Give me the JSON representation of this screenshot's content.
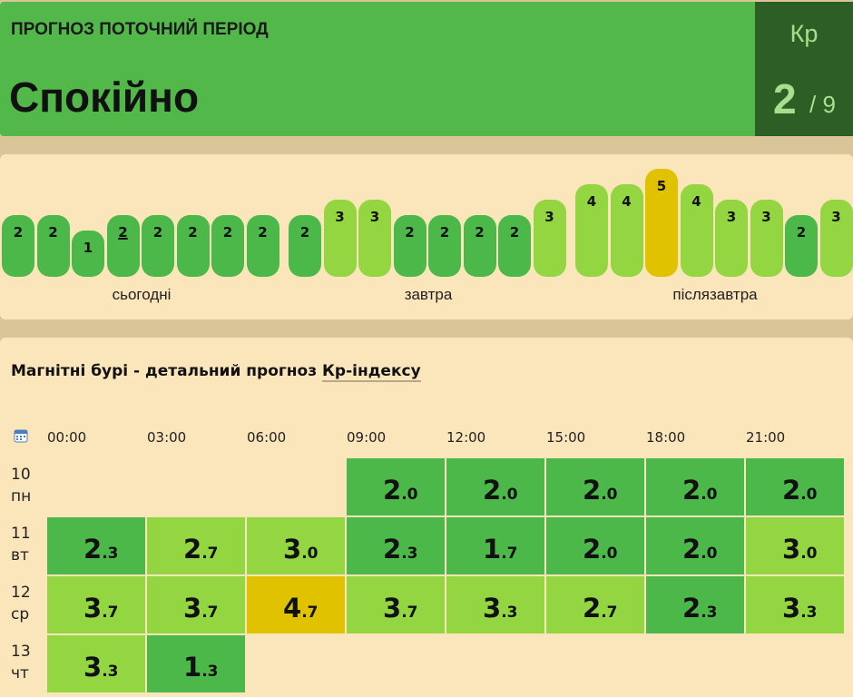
{
  "header": {
    "title": "ПРОГНОЗ ПОТОЧНИЙ ПЕРІОД",
    "status": "Спокійно",
    "kp_label": "Кр",
    "kp_value": "2",
    "kp_scale": "/ 9"
  },
  "forecast_bars": {
    "days": [
      {
        "label": "сьогодні",
        "values": [
          2,
          2,
          1,
          2,
          2,
          2,
          2,
          2
        ],
        "current": 3
      },
      {
        "label": "завтра",
        "values": [
          2,
          3,
          3,
          2,
          2,
          2,
          2,
          3
        ]
      },
      {
        "label": "післязавтра",
        "values": [
          4,
          4,
          5,
          4,
          3,
          3,
          2,
          3
        ]
      }
    ]
  },
  "detail": {
    "title": "Магнітні бурі - детальний прогноз ",
    "title_link": "Кр-індексу",
    "times": [
      "00:00",
      "03:00",
      "06:00",
      "09:00",
      "12:00",
      "15:00",
      "18:00",
      "21:00"
    ],
    "rows": [
      {
        "day": "10",
        "weekday": "пн",
        "values": [
          null,
          null,
          null,
          "2.0",
          "2.0",
          "2.0",
          "2.0",
          "2.0"
        ]
      },
      {
        "day": "11",
        "weekday": "вт",
        "values": [
          "2.3",
          "2.7",
          "3.0",
          "2.3",
          "1.7",
          "2.0",
          "2.0",
          "3.0"
        ]
      },
      {
        "day": "12",
        "weekday": "ср",
        "values": [
          "3.7",
          "3.7",
          "4.7",
          "3.7",
          "3.3",
          "2.7",
          "2.3",
          "3.3"
        ]
      },
      {
        "day": "13",
        "weekday": "чт",
        "values": [
          "3.3",
          "1.3",
          null,
          null,
          null,
          null,
          null,
          null
        ]
      }
    ]
  }
}
